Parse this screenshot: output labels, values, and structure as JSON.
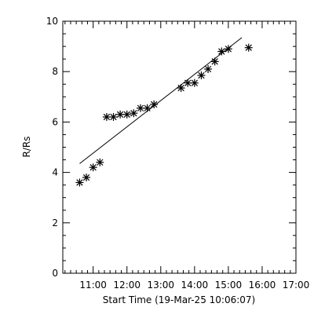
{
  "chart_data": {
    "type": "scatter",
    "xlabel": "Start Time (19-Mar-25 10:06:07)",
    "ylabel": "R/Rs",
    "xlim": [
      "10:06:07",
      "17:00"
    ],
    "ylim": [
      0,
      10
    ],
    "x_ticks": [
      "11:00",
      "12:00",
      "13:00",
      "14:00",
      "15:00",
      "16:00",
      "17:00"
    ],
    "y_ticks": [
      "0",
      "2",
      "4",
      "6",
      "8",
      "10"
    ],
    "grid": false,
    "marker": "asterisk",
    "points": [
      {
        "x": "10:36",
        "y": 3.6
      },
      {
        "x": "10:48",
        "y": 3.8
      },
      {
        "x": "11:00",
        "y": 4.2
      },
      {
        "x": "11:12",
        "y": 4.4
      },
      {
        "x": "11:24",
        "y": 6.2
      },
      {
        "x": "11:36",
        "y": 6.2
      },
      {
        "x": "11:48",
        "y": 6.3
      },
      {
        "x": "12:00",
        "y": 6.3
      },
      {
        "x": "12:12",
        "y": 6.35
      },
      {
        "x": "12:24",
        "y": 6.55
      },
      {
        "x": "12:36",
        "y": 6.55
      },
      {
        "x": "12:48",
        "y": 6.7
      },
      {
        "x": "13:36",
        "y": 7.35
      },
      {
        "x": "13:48",
        "y": 7.55
      },
      {
        "x": "14:00",
        "y": 7.55
      },
      {
        "x": "14:12",
        "y": 7.85
      },
      {
        "x": "14:24",
        "y": 8.1
      },
      {
        "x": "14:36",
        "y": 8.4
      },
      {
        "x": "14:48",
        "y": 8.8
      },
      {
        "x": "15:00",
        "y": 8.9
      },
      {
        "x": "15:36",
        "y": 8.95
      }
    ],
    "fit_line": {
      "start": {
        "x": "10:36",
        "y": 4.35
      },
      "end": {
        "x": "15:24",
        "y": 9.35
      }
    }
  }
}
